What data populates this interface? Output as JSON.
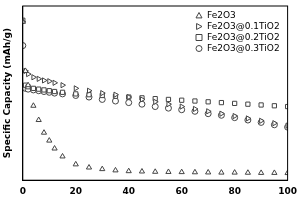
{
  "chart_data": {
    "type": "scatter",
    "ylabel": "Specific Capacity (mAh/g)",
    "x": [
      0,
      1,
      2,
      4,
      6,
      8,
      10,
      12,
      15,
      20,
      25,
      30,
      35,
      40,
      45,
      50,
      55,
      60,
      65,
      70,
      75,
      80,
      85,
      90,
      95,
      100
    ],
    "series": [
      {
        "name": "Fe2O3",
        "color": "#444444",
        "marker": "triangle",
        "values": [
          1000,
          690,
          600,
          470,
          380,
          300,
          250,
          200,
          150,
          100,
          80,
          70,
          62,
          57,
          55,
          53,
          52,
          51,
          50,
          49,
          48,
          48,
          47,
          46,
          46,
          45
        ]
      },
      {
        "name": "Fe2O3@0.1TiO2",
        "color": "#444444",
        "marker": "triangle-right",
        "values": [
          1000,
          690,
          670,
          650,
          640,
          630,
          625,
          615,
          600,
          580,
          565,
          550,
          540,
          525,
          510,
          495,
          480,
          465,
          450,
          435,
          420,
          405,
          390,
          375,
          360,
          345
        ]
      },
      {
        "name": "Fe2O3@0.2TiO2",
        "color": "#444444",
        "marker": "square",
        "values": [
          1010,
          600,
          590,
          580,
          575,
          570,
          565,
          560,
          555,
          545,
          540,
          535,
          530,
          525,
          520,
          515,
          510,
          505,
          500,
          495,
          490,
          485,
          480,
          475,
          470,
          465
        ]
      },
      {
        "name": "Fe2O3@0.3TiO2",
        "color": "#444444",
        "marker": "circle",
        "values": [
          850,
          580,
          575,
          570,
          565,
          560,
          555,
          550,
          545,
          535,
          525,
          510,
          500,
          490,
          480,
          465,
          455,
          445,
          435,
          420,
          410,
          395,
          380,
          365,
          350,
          335
        ]
      }
    ],
    "xlim": [
      0,
      100
    ],
    "xticks": [
      0,
      20,
      40,
      60,
      80,
      100
    ],
    "ylim": [
      0,
      1100
    ],
    "grid": false,
    "legend": "upper right",
    "tick_labels": "x"
  }
}
